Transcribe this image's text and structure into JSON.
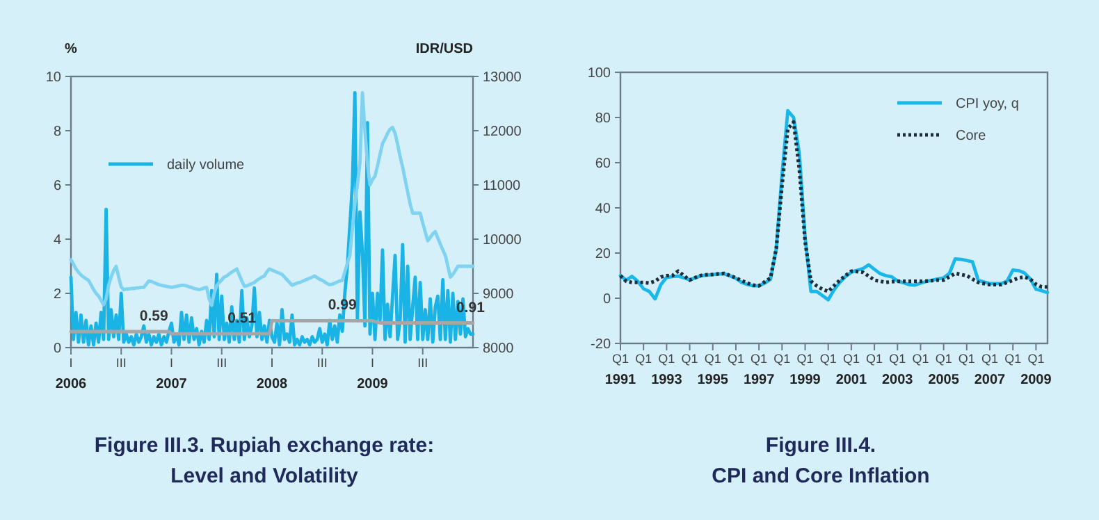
{
  "chart_data": [
    {
      "type": "line",
      "title": "Figure III.3. Rupiah exchange rate:\nLevel and Volatility",
      "ylabel": "%",
      "y2label": "IDR/USD",
      "ylim": [
        0,
        10
      ],
      "y2lim": [
        8000,
        13000
      ],
      "categories": [
        "I\n2006",
        null,
        null,
        null,
        null,
        null,
        null,
        null,
        null,
        null,
        null,
        null,
        null,
        null,
        null,
        null,
        null,
        null,
        null,
        null,
        "III",
        null,
        null,
        null,
        null,
        null,
        null,
        null,
        null,
        null,
        null,
        null,
        null,
        null,
        null,
        null,
        null,
        null,
        null,
        null,
        "I\n2007",
        null,
        null,
        null,
        null,
        null,
        null,
        null,
        null,
        null,
        null,
        null,
        null,
        null,
        null,
        null,
        null,
        null,
        null,
        null,
        "III",
        null,
        null,
        null,
        null,
        null,
        null,
        null,
        null,
        null,
        null,
        null,
        null,
        null,
        null,
        null,
        null,
        null,
        null,
        null,
        "I\n2008",
        null,
        null,
        null,
        null,
        null,
        null,
        null,
        null,
        null,
        null,
        null,
        null,
        null,
        null,
        null,
        null,
        null,
        null,
        null,
        "III",
        null,
        null,
        null,
        null,
        null,
        null,
        null,
        null,
        null,
        null,
        null,
        null,
        null,
        null,
        null,
        null,
        null,
        null,
        null,
        "I\n2009",
        null,
        null,
        null,
        null,
        null,
        null,
        null,
        null,
        null,
        null,
        null,
        null,
        null,
        null,
        null,
        null,
        null,
        null,
        null,
        "III",
        null,
        null,
        null,
        null,
        null,
        null,
        null,
        null,
        null,
        null,
        null,
        null,
        null,
        null,
        null,
        null,
        null,
        null,
        null,
        null
      ],
      "yticks": [
        0,
        2,
        4,
        6,
        8,
        10
      ],
      "y2ticks": [
        8000,
        9000,
        10000,
        11000,
        12000,
        13000
      ],
      "legend": "top left",
      "grid": false,
      "series": [
        {
          "name": "daily volume",
          "color": "#19b3e6",
          "values": [
            2.6,
            0.3,
            1.3,
            0.2,
            1.2,
            0.2,
            1.0,
            0.1,
            0.8,
            0.1,
            0.9,
            0.2,
            1.3,
            0.3,
            5.1,
            0.3,
            1.4,
            0.4,
            1.2,
            0.3,
            2.0,
            0.2,
            0.5,
            0.2,
            0.4,
            0.1,
            0.5,
            0.2,
            0.4,
            0.8,
            0.2,
            0.5,
            0.1,
            0.4,
            0.2,
            0.5,
            0.1,
            0.4,
            0.2,
            0.6,
            0.9,
            0.2,
            0.5,
            0.1,
            1.3,
            0.3,
            1.2,
            0.2,
            1.1,
            0.3,
            0.7,
            0.1,
            0.6,
            0.2,
            1.0,
            0.3,
            2.1,
            0.4,
            2.7,
            0.3,
            1.9,
            0.3,
            0.9,
            0.2,
            1.5,
            0.3,
            1.0,
            0.2,
            2.1,
            0.3,
            1.1,
            0.4,
            0.8,
            2.2,
            0.4,
            1.3,
            0.3,
            0.8,
            0.2,
            1.0,
            0.4,
            0.2,
            0.9,
            0.1,
            1.4,
            0.3,
            0.5,
            0.2,
            1.2,
            0.1,
            0.3,
            0.1,
            0.4,
            0.2,
            0.3,
            0.1,
            0.4,
            0.2,
            0.3,
            0.7,
            0.2,
            0.5,
            0.1,
            1.0,
            0.3,
            0.8,
            0.2,
            1.2,
            0.6,
            2.0,
            3.0,
            4.5,
            6.0,
            9.4,
            1.0,
            5.0,
            3.5,
            0.8,
            8.3,
            0.5,
            2.0,
            0.3,
            2.0,
            1.0,
            3.6,
            0.3,
            1.6,
            0.4,
            1.9,
            3.4,
            0.3,
            1.0,
            3.8,
            0.2,
            3.0,
            0.3,
            1.5,
            2.6,
            0.3,
            2.4,
            0.3,
            1.4,
            0.3,
            1.8,
            0.2,
            1.5,
            1.9,
            0.3,
            2.5,
            0.3,
            2.1,
            0.2,
            2.0,
            0.3,
            1.7,
            0.5,
            1.8,
            0.4,
            0.7,
            0.5,
            0.5
          ]
        },
        {
          "color": "#7fd3f0",
          "axis": "y2",
          "values": [
            9620,
            9540,
            9450,
            9390,
            9340,
            9300,
            9270,
            9240,
            9160,
            9070,
            9000,
            8950,
            8870,
            8790,
            8900,
            9150,
            9300,
            9420,
            9500,
            9300,
            9120,
            9070,
            9080,
            9080,
            9090,
            9090,
            9100,
            9100,
            9110,
            9110,
            9170,
            9230,
            9220,
            9200,
            9180,
            9160,
            9150,
            9140,
            9130,
            9120,
            9110,
            9120,
            9130,
            9140,
            9150,
            9150,
            9140,
            9120,
            9110,
            9090,
            9080,
            9070,
            9080,
            9100,
            9110,
            8900,
            8780,
            9000,
            9140,
            9200,
            9250,
            9300,
            9320,
            9360,
            9390,
            9420,
            9450,
            9340,
            9230,
            9130,
            9140,
            9160,
            9180,
            9200,
            9240,
            9270,
            9300,
            9320,
            9400,
            9450,
            9430,
            9410,
            9390,
            9370,
            9350,
            9300,
            9250,
            9200,
            9150,
            9170,
            9190,
            9200,
            9220,
            9240,
            9260,
            9280,
            9300,
            9320,
            9290,
            9260,
            9240,
            9210,
            9180,
            9160,
            9170,
            9190,
            9210,
            9230,
            9240,
            9400,
            9550,
            9700,
            10200,
            10650,
            11000,
            11400,
            12700,
            12000,
            11400,
            11000,
            11100,
            11160,
            11350,
            11560,
            11760,
            11850,
            11950,
            12030,
            12060,
            11950,
            11750,
            11520,
            11330,
            11100,
            10870,
            10650,
            10480,
            10480,
            10480,
            10480,
            10300,
            10130,
            9970,
            10030,
            10100,
            10140,
            10020,
            9910,
            9800,
            9700,
            9500,
            9300,
            9350,
            9420,
            9500,
            9500,
            9500,
            9500,
            9500,
            9500,
            9500
          ]
        },
        {
          "color": "#a6a6a6",
          "values": [
            0.59,
            0.59,
            0.59,
            0.59,
            0.59,
            0.59,
            0.59,
            0.59,
            0.59,
            0.59,
            0.59,
            0.59,
            0.59,
            0.59,
            0.59,
            0.59,
            0.59,
            0.59,
            0.59,
            0.59,
            0.59,
            0.59,
            0.59,
            0.59,
            0.59,
            0.59,
            0.59,
            0.59,
            0.59,
            0.59,
            0.59,
            0.59,
            0.59,
            0.59,
            0.59,
            0.59,
            0.59,
            0.59,
            0.59,
            0.59,
            0.51,
            0.51,
            0.51,
            0.51,
            0.51,
            0.51,
            0.51,
            0.51,
            0.51,
            0.51,
            0.51,
            0.51,
            0.51,
            0.51,
            0.51,
            0.51,
            0.51,
            0.51,
            0.51,
            0.51,
            0.51,
            0.51,
            0.51,
            0.51,
            0.51,
            0.51,
            0.51,
            0.51,
            0.51,
            0.51,
            0.51,
            0.51,
            0.51,
            0.51,
            0.51,
            0.51,
            0.51,
            0.51,
            0.51,
            0.51,
            0.99,
            0.99,
            0.99,
            0.99,
            0.99,
            0.99,
            0.99,
            0.99,
            0.99,
            0.99,
            0.99,
            0.99,
            0.99,
            0.99,
            0.99,
            0.99,
            0.99,
            0.99,
            0.99,
            0.99,
            0.99,
            0.99,
            0.99,
            0.99,
            0.99,
            0.99,
            0.99,
            0.99,
            0.99,
            0.99,
            0.99,
            0.99,
            0.99,
            0.99,
            0.99,
            0.99,
            0.99,
            0.99,
            0.99,
            0.99,
            0.99,
            0.96,
            0.93,
            0.91,
            0.91,
            0.91,
            0.91,
            0.91,
            0.91,
            0.91,
            0.91,
            0.91,
            0.91,
            0.91,
            0.91,
            0.91,
            0.91,
            0.91,
            0.91,
            0.91,
            0.91,
            0.91,
            0.91,
            0.91,
            0.91,
            0.91,
            0.91,
            0.91,
            0.91,
            0.91,
            0.91,
            0.91,
            0.91,
            0.91,
            0.91,
            0.91,
            0.91,
            0.91,
            0.91,
            0.91,
            0.91
          ],
          "value_labels": [
            null,
            null,
            null,
            null,
            null,
            null,
            null,
            null,
            null,
            null,
            null,
            null,
            null,
            null,
            null,
            null,
            null,
            null,
            null,
            null,
            null,
            null,
            null,
            null,
            null,
            null,
            null,
            null,
            null,
            null,
            null,
            null,
            null,
            "0.59",
            null,
            null,
            null,
            null,
            null,
            null,
            null,
            null,
            null,
            null,
            null,
            null,
            null,
            null,
            null,
            null,
            null,
            null,
            null,
            null,
            null,
            null,
            null,
            null,
            null,
            null,
            null,
            null,
            null,
            null,
            null,
            null,
            null,
            null,
            "0.51",
            null,
            null,
            null,
            null,
            null,
            null,
            null,
            null,
            null,
            null,
            null,
            null,
            null,
            null,
            null,
            null,
            null,
            null,
            null,
            null,
            null,
            null,
            null,
            null,
            null,
            null,
            null,
            null,
            null,
            null,
            null,
            null,
            null,
            null,
            null,
            null,
            null,
            null,
            null,
            "0.99",
            null,
            null,
            null,
            null,
            null,
            null,
            null,
            null,
            null,
            null,
            null,
            null,
            null,
            null,
            null,
            null,
            null,
            null,
            null,
            null,
            null,
            null,
            null,
            null,
            null,
            null,
            null,
            null,
            null,
            null,
            null,
            null,
            null,
            null,
            null,
            null,
            null,
            null,
            null,
            null,
            null,
            null,
            null,
            null,
            null,
            null,
            null,
            null,
            null,
            null,
            "0.91",
            null
          ]
        }
      ]
    },
    {
      "type": "line",
      "title": "Figure III.4.\nCPI and Core Inflation",
      "ylim": [
        -20,
        100
      ],
      "yticks": [
        -20,
        0,
        20,
        40,
        60,
        80,
        100
      ],
      "categories": [
        "Q1\n1991",
        null,
        null,
        null,
        "Q1",
        null,
        null,
        null,
        "Q1\n1993",
        null,
        null,
        null,
        "Q1",
        null,
        null,
        null,
        "Q1\n1995",
        null,
        null,
        null,
        "Q1",
        null,
        null,
        null,
        "Q1\n1997",
        null,
        null,
        null,
        "Q1",
        null,
        null,
        null,
        "Q1\n1999",
        null,
        null,
        null,
        "Q1",
        null,
        null,
        null,
        "Q1\n2001",
        null,
        null,
        null,
        "Q1",
        null,
        null,
        null,
        "Q1\n2003",
        null,
        null,
        null,
        "Q1",
        null,
        null,
        null,
        "Q1\n2005",
        null,
        null,
        null,
        "Q1",
        null,
        null,
        null,
        "Q1\n2007",
        null,
        null,
        null,
        "Q1",
        null,
        null,
        null,
        "Q1\n2009",
        null,
        null
      ],
      "legend": "top right",
      "grid": false,
      "series": [
        {
          "name": "CPI yoy, q",
          "color": "#1ab7ea",
          "line_style": "solid",
          "values": [
            10,
            8,
            9.7,
            7.5,
            4.2,
            3,
            -0.3,
            6,
            9.2,
            9.6,
            9.8,
            9,
            8.2,
            9,
            10,
            10.2,
            10.5,
            10.7,
            10.8,
            9.9,
            8.8,
            7,
            6.1,
            5.5,
            5.5,
            6.7,
            8.4,
            22,
            55,
            83,
            80,
            64,
            27,
            3,
            3,
            1.2,
            -0.7,
            3.7,
            7,
            9.6,
            11.5,
            12.4,
            13.1,
            14.8,
            12.8,
            10.9,
            10,
            9.5,
            7.6,
            6.9,
            6,
            5.8,
            6.7,
            7.4,
            8,
            8.6,
            9,
            11,
            17.4,
            17.2,
            16.7,
            16.1,
            7.9,
            7.2,
            6.5,
            6.5,
            6.5,
            7.6,
            12.5,
            12.2,
            11.2,
            8.6,
            4,
            3.3,
            2.5
          ]
        },
        {
          "name": "Core",
          "color": "#1e2d3b",
          "line_style": "dotted",
          "values": [
            10,
            7.5,
            7,
            7,
            7,
            6.7,
            7.5,
            9.4,
            10,
            10,
            12,
            10,
            8,
            9.2,
            10.1,
            10.4,
            10.5,
            10.8,
            11,
            10,
            9,
            7.8,
            6.7,
            5.8,
            5.5,
            7.3,
            9,
            22,
            50,
            75,
            78,
            57,
            25,
            7.6,
            5.5,
            4,
            3,
            5.5,
            8,
            10,
            12,
            11.8,
            11.5,
            9.8,
            8,
            7.5,
            7,
            7.3,
            7.5,
            7.5,
            7.5,
            7.5,
            7.5,
            7.6,
            7.8,
            8,
            8,
            9.5,
            11,
            10.5,
            10,
            8.5,
            7,
            6.5,
            6,
            6,
            6,
            7,
            8,
            9,
            9.4,
            8.5,
            6.2,
            5,
            5
          ]
        }
      ]
    }
  ]
}
